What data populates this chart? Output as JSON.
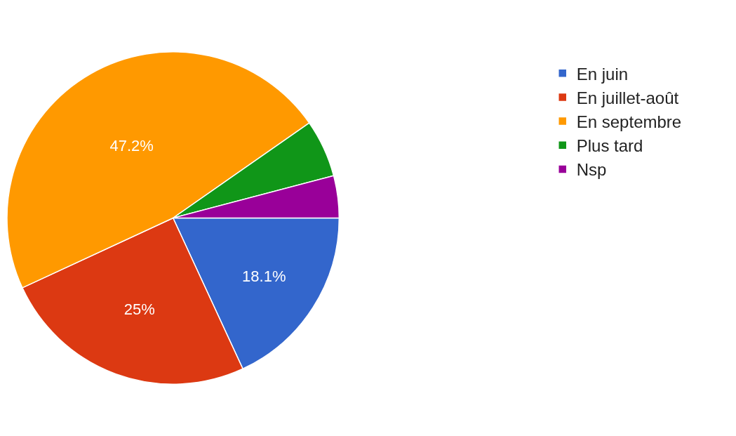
{
  "chart_data": {
    "type": "pie",
    "categories": [
      "En juin",
      "En juillet-août",
      "En septembre",
      "Plus tard",
      "Nsp"
    ],
    "values": [
      18.1,
      25,
      47.2,
      5.6,
      4.1
    ],
    "colors": [
      "#3366cc",
      "#dc3912",
      "#ff9900",
      "#109618",
      "#990099"
    ],
    "value_labels": [
      "18.1%",
      "25%",
      "47.2%",
      null,
      null
    ],
    "legend": "top right"
  }
}
